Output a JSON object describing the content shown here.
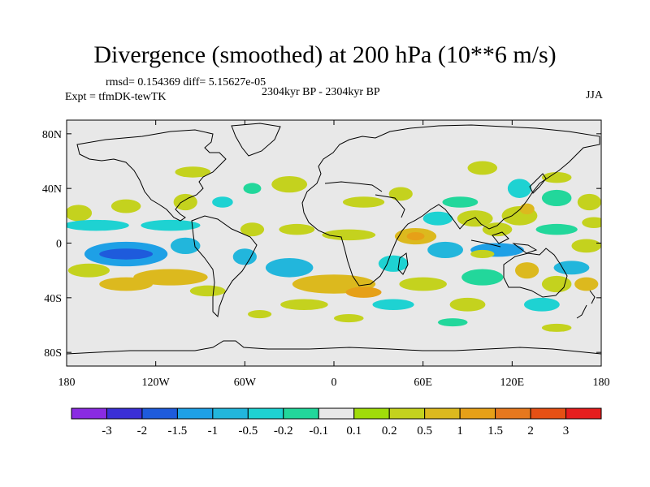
{
  "title": "Divergence (smoothed) at 200 hPa (10**6 m/s)",
  "stats": "rmsd= 0.154369 diff= 5.15627e-05",
  "expt": "Expt = tfmDK-tewTK",
  "period": "2304kyr BP - 2304kyr BP",
  "season": "JJA",
  "chart_data": {
    "type": "heatmap",
    "title": "Divergence (smoothed) at 200 hPa (10**6 m/s)",
    "subtitle": "2304kyr BP - 2304kyr BP",
    "xlabel": "",
    "ylabel": "",
    "xlim": [
      -180,
      180
    ],
    "ylim": [
      -90,
      90
    ],
    "x_ticks": [
      {
        "value": -180,
        "label": "180"
      },
      {
        "value": -120,
        "label": "120W"
      },
      {
        "value": -60,
        "label": "60W"
      },
      {
        "value": 0,
        "label": "0"
      },
      {
        "value": 60,
        "label": "60E"
      },
      {
        "value": 120,
        "label": "120E"
      },
      {
        "value": 180,
        "label": "180"
      }
    ],
    "y_ticks": [
      {
        "value": 80,
        "label": "80N"
      },
      {
        "value": 40,
        "label": "40N"
      },
      {
        "value": 0,
        "label": "0"
      },
      {
        "value": -40,
        "label": "40S"
      },
      {
        "value": -80,
        "label": "80S"
      }
    ],
    "colorbar": {
      "colors": [
        "#8a2be2",
        "#3a2fd6",
        "#1e5bdc",
        "#1ea0e6",
        "#22b6dc",
        "#1ed2d2",
        "#22d79b",
        "#e8e8e8",
        "#a0dc0a",
        "#c4d21e",
        "#dcb91e",
        "#e6a018",
        "#e6781e",
        "#e65014",
        "#e61e1e"
      ],
      "boundaries": [
        "-3",
        "-2",
        "-1.5",
        "-1",
        "-0.5",
        "-0.2",
        "-0.1",
        "0.1",
        "0.2",
        "0.5",
        "1",
        "1.5",
        "2",
        "3"
      ]
    },
    "blobs": [
      {
        "lon": -172,
        "lat": 22,
        "rx": 9,
        "ry": 6,
        "level": 9
      },
      {
        "lon": -140,
        "lat": 27,
        "rx": 10,
        "ry": 5,
        "level": 9
      },
      {
        "lon": -100,
        "lat": 30,
        "rx": 8,
        "ry": 6,
        "level": 9
      },
      {
        "lon": -75,
        "lat": 30,
        "rx": 7,
        "ry": 4,
        "level": 5
      },
      {
        "lon": -95,
        "lat": 52,
        "rx": 12,
        "ry": 4,
        "level": 9
      },
      {
        "lon": -30,
        "lat": 43,
        "rx": 12,
        "ry": 6,
        "level": 9
      },
      {
        "lon": -55,
        "lat": 40,
        "rx": 6,
        "ry": 4,
        "level": 6
      },
      {
        "lon": 100,
        "lat": 55,
        "rx": 10,
        "ry": 5,
        "level": 9
      },
      {
        "lon": 45,
        "lat": 36,
        "rx": 8,
        "ry": 5,
        "level": 9
      },
      {
        "lon": 125,
        "lat": 40,
        "rx": 8,
        "ry": 7,
        "level": 5
      },
      {
        "lon": 150,
        "lat": 33,
        "rx": 10,
        "ry": 6,
        "level": 6
      },
      {
        "lon": 150,
        "lat": 48,
        "rx": 10,
        "ry": 4,
        "level": 9
      },
      {
        "lon": 172,
        "lat": 30,
        "rx": 8,
        "ry": 6,
        "level": 9
      },
      {
        "lon": 20,
        "lat": 30,
        "rx": 14,
        "ry": 4,
        "level": 9
      },
      {
        "lon": 85,
        "lat": 30,
        "rx": 12,
        "ry": 4,
        "level": 6
      },
      {
        "lon": 95,
        "lat": 18,
        "rx": 12,
        "ry": 6,
        "level": 9
      },
      {
        "lon": 70,
        "lat": 18,
        "rx": 10,
        "ry": 5,
        "level": 5
      },
      {
        "lon": 125,
        "lat": 20,
        "rx": 12,
        "ry": 7,
        "level": 9
      },
      {
        "lon": 130,
        "lat": 25,
        "rx": 5,
        "ry": 4,
        "level": 10
      },
      {
        "lon": 110,
        "lat": 10,
        "rx": 10,
        "ry": 5,
        "level": 9
      },
      {
        "lon": -160,
        "lat": 13,
        "rx": 22,
        "ry": 4,
        "level": 5
      },
      {
        "lon": -110,
        "lat": 13,
        "rx": 20,
        "ry": 4,
        "level": 5
      },
      {
        "lon": -55,
        "lat": 10,
        "rx": 8,
        "ry": 5,
        "level": 9
      },
      {
        "lon": -25,
        "lat": 10,
        "rx": 12,
        "ry": 4,
        "level": 9
      },
      {
        "lon": 10,
        "lat": 6,
        "rx": 18,
        "ry": 4,
        "level": 9
      },
      {
        "lon": 55,
        "lat": 5,
        "rx": 14,
        "ry": 6,
        "level": 10
      },
      {
        "lon": 55,
        "lat": 5,
        "rx": 6,
        "ry": 3,
        "level": 11
      },
      {
        "lon": 150,
        "lat": 10,
        "rx": 14,
        "ry": 4,
        "level": 6
      },
      {
        "lon": 175,
        "lat": 15,
        "rx": 8,
        "ry": 4,
        "level": 9
      },
      {
        "lon": -140,
        "lat": -8,
        "rx": 28,
        "ry": 9,
        "level": 3
      },
      {
        "lon": -140,
        "lat": -8,
        "rx": 18,
        "ry": 4,
        "level": 2
      },
      {
        "lon": -100,
        "lat": -2,
        "rx": 10,
        "ry": 6,
        "level": 4
      },
      {
        "lon": -60,
        "lat": -10,
        "rx": 8,
        "ry": 6,
        "level": 4
      },
      {
        "lon": -165,
        "lat": -20,
        "rx": 14,
        "ry": 5,
        "level": 9
      },
      {
        "lon": -110,
        "lat": -25,
        "rx": 25,
        "ry": 6,
        "level": 10
      },
      {
        "lon": -140,
        "lat": -30,
        "rx": 18,
        "ry": 5,
        "level": 10
      },
      {
        "lon": -85,
        "lat": -35,
        "rx": 12,
        "ry": 4,
        "level": 9
      },
      {
        "lon": -30,
        "lat": -18,
        "rx": 16,
        "ry": 7,
        "level": 4
      },
      {
        "lon": 40,
        "lat": -15,
        "rx": 10,
        "ry": 6,
        "level": 5
      },
      {
        "lon": 75,
        "lat": -5,
        "rx": 12,
        "ry": 6,
        "level": 4
      },
      {
        "lon": 110,
        "lat": -5,
        "rx": 18,
        "ry": 5,
        "level": 3
      },
      {
        "lon": 100,
        "lat": -8,
        "rx": 8,
        "ry": 3,
        "level": 9
      },
      {
        "lon": 160,
        "lat": -18,
        "rx": 12,
        "ry": 5,
        "level": 4
      },
      {
        "lon": 170,
        "lat": -2,
        "rx": 10,
        "ry": 5,
        "level": 9
      },
      {
        "lon": 0,
        "lat": -30,
        "rx": 28,
        "ry": 7,
        "level": 10
      },
      {
        "lon": 20,
        "lat": -36,
        "rx": 12,
        "ry": 4,
        "level": 11
      },
      {
        "lon": 60,
        "lat": -30,
        "rx": 16,
        "ry": 5,
        "level": 9
      },
      {
        "lon": 100,
        "lat": -25,
        "rx": 14,
        "ry": 6,
        "level": 6
      },
      {
        "lon": 130,
        "lat": -20,
        "rx": 8,
        "ry": 6,
        "level": 10
      },
      {
        "lon": 150,
        "lat": -30,
        "rx": 10,
        "ry": 6,
        "level": 9
      },
      {
        "lon": 170,
        "lat": -30,
        "rx": 8,
        "ry": 5,
        "level": 10
      },
      {
        "lon": -20,
        "lat": -45,
        "rx": 16,
        "ry": 4,
        "level": 9
      },
      {
        "lon": 40,
        "lat": -45,
        "rx": 14,
        "ry": 4,
        "level": 5
      },
      {
        "lon": 90,
        "lat": -45,
        "rx": 12,
        "ry": 5,
        "level": 9
      },
      {
        "lon": 140,
        "lat": -45,
        "rx": 12,
        "ry": 5,
        "level": 5
      },
      {
        "lon": -50,
        "lat": -52,
        "rx": 8,
        "ry": 3,
        "level": 9
      },
      {
        "lon": 10,
        "lat": -55,
        "rx": 10,
        "ry": 3,
        "level": 9
      },
      {
        "lon": 80,
        "lat": -58,
        "rx": 10,
        "ry": 3,
        "level": 6
      },
      {
        "lon": 150,
        "lat": -62,
        "rx": 10,
        "ry": 3,
        "level": 9
      }
    ]
  }
}
